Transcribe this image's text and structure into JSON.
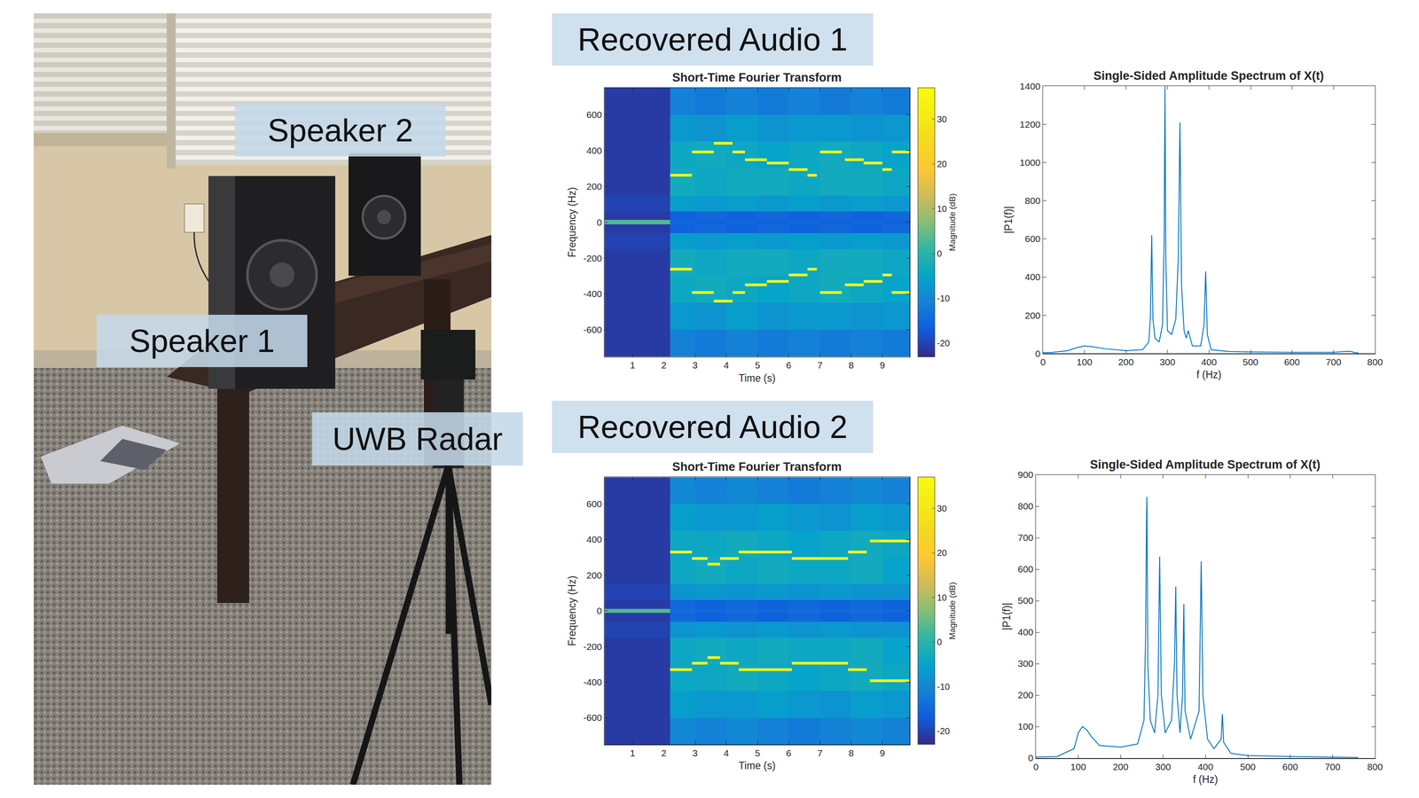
{
  "photo": {
    "labels": [
      "Speaker 2",
      "Speaker 1",
      "UWB Radar"
    ]
  },
  "panel_titles": [
    "Recovered Audio 1",
    "Recovered Audio 2"
  ],
  "chart_data": [
    {
      "type": "heatmap",
      "title": "Short-Time Fourier Transform",
      "x_label": "Time (s)",
      "y_label": "Frequency (Hz)",
      "xlim": [
        0.1,
        9.87
      ],
      "ylim": [
        -750,
        750
      ],
      "xticks": [
        1,
        2,
        3,
        4,
        5,
        6,
        7,
        8,
        9
      ],
      "yticks": [
        -600,
        -400,
        -200,
        0,
        200,
        400,
        600
      ],
      "grid": false,
      "x_edges": [
        0.1,
        2.2,
        3,
        4,
        5,
        6,
        7,
        8,
        9,
        9.87
      ],
      "y_edges": [
        -750,
        -600,
        -450,
        -300,
        -150,
        -60,
        -12,
        12,
        60,
        150,
        300,
        450,
        600,
        750
      ],
      "cells": [
        [
          -21,
          -11,
          -12,
          -11,
          -12,
          -11,
          -12,
          -11,
          -12
        ],
        [
          -21,
          -7,
          -8,
          -6,
          -8,
          -7,
          -7,
          -8,
          -7
        ],
        [
          -21,
          -4,
          -3,
          -4,
          -5,
          -4,
          -3,
          -4,
          -5
        ],
        [
          -21,
          -3,
          -4,
          -3,
          -3,
          -4,
          -3,
          -3,
          -4
        ],
        [
          -20,
          -6,
          -7,
          -6,
          -7,
          -6,
          -7,
          -6,
          -7
        ],
        [
          -21,
          -16,
          -15,
          -16,
          -15,
          -16,
          -15,
          -16,
          -15
        ],
        [
          3,
          -15,
          -16,
          -15,
          -16,
          -15,
          -16,
          -15,
          -16
        ],
        [
          -21,
          -16,
          -15,
          -16,
          -15,
          -16,
          -15,
          -16,
          -15
        ],
        [
          -20,
          -6,
          -7,
          -6,
          -7,
          -6,
          -7,
          -6,
          -7
        ],
        [
          -21,
          -3,
          -4,
          -3,
          -3,
          -4,
          -3,
          -3,
          -4
        ],
        [
          -21,
          -4,
          -3,
          -4,
          -5,
          -4,
          -3,
          -4,
          -5
        ],
        [
          -21,
          -7,
          -8,
          -6,
          -8,
          -7,
          -7,
          -8,
          -7
        ],
        [
          -21,
          -11,
          -12,
          -11,
          -12,
          -11,
          -12,
          -11,
          -12
        ]
      ],
      "colorbar": {
        "label": "Magnitude (dB)",
        "range": [
          -23,
          37
        ],
        "ticks": [
          -20,
          -10,
          0,
          10,
          20,
          30
        ]
      },
      "series": [
        {
          "type": "line",
          "color": "#f9fb15",
          "x": [
            2.2,
            2.9,
            null,
            2.9,
            3.6,
            null,
            3.6,
            4.2,
            null,
            4.2,
            4.6,
            null,
            4.6,
            5.3,
            null,
            5.3,
            6.0,
            null,
            6.0,
            6.6,
            null,
            6.6,
            6.9,
            null,
            7.0,
            7.7,
            null,
            7.8,
            8.4,
            null,
            8.4,
            9.0,
            null,
            9.0,
            9.3,
            null,
            9.3,
            9.87
          ],
          "values": [
            262,
            262,
            null,
            392,
            392,
            null,
            440,
            440,
            null,
            392,
            392,
            null,
            349,
            349,
            null,
            330,
            330,
            null,
            294,
            294,
            null,
            262,
            262,
            null,
            392,
            392,
            null,
            349,
            349,
            null,
            330,
            330,
            null,
            294,
            294,
            null,
            392,
            392
          ]
        },
        {
          "type": "line",
          "color": "#f9fb15",
          "x": [
            2.2,
            2.9,
            null,
            2.9,
            3.6,
            null,
            3.6,
            4.2,
            null,
            4.2,
            4.6,
            null,
            4.6,
            5.3,
            null,
            5.3,
            6.0,
            null,
            6.0,
            6.6,
            null,
            6.6,
            6.9,
            null,
            7.0,
            7.7,
            null,
            7.8,
            8.4,
            null,
            8.4,
            9.0,
            null,
            9.0,
            9.3,
            null,
            9.3,
            9.87
          ],
          "values": [
            -262,
            -262,
            null,
            -392,
            -392,
            null,
            -440,
            -440,
            null,
            -392,
            -392,
            null,
            -349,
            -349,
            null,
            -330,
            -330,
            null,
            -294,
            -294,
            null,
            -262,
            -262,
            null,
            -392,
            -392,
            null,
            -349,
            -349,
            null,
            -330,
            -330,
            null,
            -294,
            -294,
            null,
            -392,
            -392
          ]
        }
      ]
    },
    {
      "type": "line",
      "title": "Single-Sided Amplitude Spectrum of X(t)",
      "x_label": "f (Hz)",
      "y_label": "|P1(f)|",
      "xlim": [
        0,
        800
      ],
      "ylim": [
        0,
        1400
      ],
      "xticks": [
        0,
        100,
        200,
        300,
        400,
        500,
        600,
        700,
        800
      ],
      "yticks": [
        0,
        200,
        400,
        600,
        800,
        1000,
        1200,
        1400
      ],
      "grid": false,
      "color": "#0072bd",
      "x": [
        0,
        20,
        60,
        80,
        100,
        120,
        150,
        200,
        240,
        255,
        259,
        262,
        265,
        270,
        280,
        288,
        292,
        294,
        296,
        300,
        310,
        320,
        326,
        330,
        334,
        340,
        345,
        350,
        360,
        380,
        388,
        392,
        396,
        405,
        450,
        500,
        600,
        700,
        740,
        750,
        760
      ],
      "values": [
        5,
        5,
        15,
        30,
        40,
        35,
        25,
        15,
        20,
        60,
        200,
        620,
        180,
        80,
        60,
        150,
        600,
        1400,
        500,
        120,
        100,
        180,
        500,
        1210,
        350,
        120,
        80,
        120,
        40,
        40,
        150,
        430,
        100,
        20,
        10,
        8,
        6,
        6,
        12,
        5,
        3
      ]
    },
    {
      "type": "heatmap",
      "title": "Short-Time Fourier Transform",
      "x_label": "Time (s)",
      "y_label": "Frequency (Hz)",
      "xlim": [
        0.1,
        9.87
      ],
      "ylim": [
        -750,
        750
      ],
      "xticks": [
        1,
        2,
        3,
        4,
        5,
        6,
        7,
        8,
        9
      ],
      "yticks": [
        -600,
        -400,
        -200,
        0,
        200,
        400,
        600
      ],
      "grid": false,
      "x_edges": [
        0.1,
        2.2,
        3,
        4,
        5,
        6,
        7,
        8,
        9,
        9.87
      ],
      "y_edges": [
        -750,
        -600,
        -450,
        -300,
        -150,
        -60,
        -12,
        12,
        60,
        150,
        300,
        450,
        600,
        750
      ],
      "cells": [
        [
          -21,
          -10,
          -11,
          -10,
          -11,
          -12,
          -11,
          -10,
          -11
        ],
        [
          -21,
          -6,
          -7,
          -7,
          -6,
          -7,
          -8,
          -6,
          -7
        ],
        [
          -21,
          -4,
          -4,
          -3,
          -4,
          -5,
          -4,
          -3,
          -4
        ],
        [
          -21,
          -4,
          -3,
          -4,
          -3,
          -4,
          -4,
          -3,
          -5
        ],
        [
          -20,
          -8,
          -7,
          -8,
          -7,
          -8,
          -7,
          -8,
          -8
        ],
        [
          -21,
          -15,
          -16,
          -15,
          -16,
          -15,
          -16,
          -15,
          -16
        ],
        [
          3,
          -14,
          -15,
          -14,
          -15,
          -14,
          -15,
          -14,
          -15
        ],
        [
          -21,
          -15,
          -16,
          -15,
          -16,
          -15,
          -16,
          -15,
          -16
        ],
        [
          -20,
          -8,
          -7,
          -8,
          -7,
          -8,
          -7,
          -8,
          -8
        ],
        [
          -21,
          -4,
          -3,
          -4,
          -3,
          -4,
          -4,
          -3,
          -5
        ],
        [
          -21,
          -4,
          -4,
          -3,
          -4,
          -5,
          -4,
          -3,
          -4
        ],
        [
          -21,
          -6,
          -7,
          -7,
          -6,
          -7,
          -8,
          -6,
          -7
        ],
        [
          -21,
          -10,
          -11,
          -10,
          -11,
          -12,
          -11,
          -10,
          -11
        ]
      ],
      "colorbar": {
        "label": "Magnitude (dB)",
        "range": [
          -23,
          37
        ],
        "ticks": [
          -20,
          -10,
          0,
          10,
          20,
          30
        ]
      },
      "series": [
        {
          "type": "line",
          "color": "#f9fb15",
          "x": [
            2.2,
            2.9,
            null,
            2.9,
            3.4,
            null,
            3.4,
            3.8,
            null,
            3.8,
            4.4,
            null,
            4.4,
            6.1,
            null,
            6.1,
            7.9,
            null,
            7.9,
            8.5,
            null,
            8.6,
            9.87
          ],
          "values": [
            330,
            330,
            null,
            294,
            294,
            null,
            262,
            262,
            null,
            294,
            294,
            null,
            330,
            330,
            null,
            294,
            294,
            null,
            330,
            330,
            null,
            392,
            392
          ]
        },
        {
          "type": "line",
          "color": "#f9fb15",
          "x": [
            2.2,
            2.9,
            null,
            2.9,
            3.4,
            null,
            3.4,
            3.8,
            null,
            3.8,
            4.4,
            null,
            4.4,
            6.1,
            null,
            6.1,
            7.9,
            null,
            7.9,
            8.5,
            null,
            8.6,
            9.87
          ],
          "values": [
            -330,
            -330,
            null,
            -294,
            -294,
            null,
            -262,
            -262,
            null,
            -294,
            -294,
            null,
            -330,
            -330,
            null,
            -294,
            -294,
            null,
            -330,
            -330,
            null,
            -392,
            -392
          ]
        }
      ]
    },
    {
      "type": "line",
      "title": "Single-Sided Amplitude Spectrum of X(t)",
      "x_label": "f (Hz)",
      "y_label": "|P1(f)|",
      "xlim": [
        0,
        800
      ],
      "ylim": [
        0,
        900
      ],
      "xticks": [
        0,
        100,
        200,
        300,
        400,
        500,
        600,
        700,
        800
      ],
      "yticks": [
        0,
        100,
        200,
        300,
        400,
        500,
        600,
        700,
        800,
        900
      ],
      "grid": false,
      "color": "#0072bd",
      "x": [
        0,
        50,
        90,
        100,
        110,
        120,
        130,
        150,
        200,
        240,
        255,
        259,
        261,
        262,
        264,
        270,
        280,
        288,
        292,
        296,
        305,
        320,
        327,
        330,
        333,
        340,
        346,
        349,
        352,
        365,
        385,
        390,
        394,
        405,
        420,
        437,
        440,
        443,
        460,
        500,
        600,
        700,
        760
      ],
      "values": [
        3,
        5,
        30,
        80,
        100,
        90,
        70,
        40,
        35,
        45,
        120,
        400,
        770,
        830,
        300,
        120,
        80,
        200,
        640,
        200,
        80,
        120,
        300,
        545,
        200,
        80,
        200,
        490,
        150,
        60,
        150,
        625,
        200,
        60,
        30,
        60,
        140,
        50,
        15,
        8,
        5,
        3,
        2
      ]
    }
  ]
}
